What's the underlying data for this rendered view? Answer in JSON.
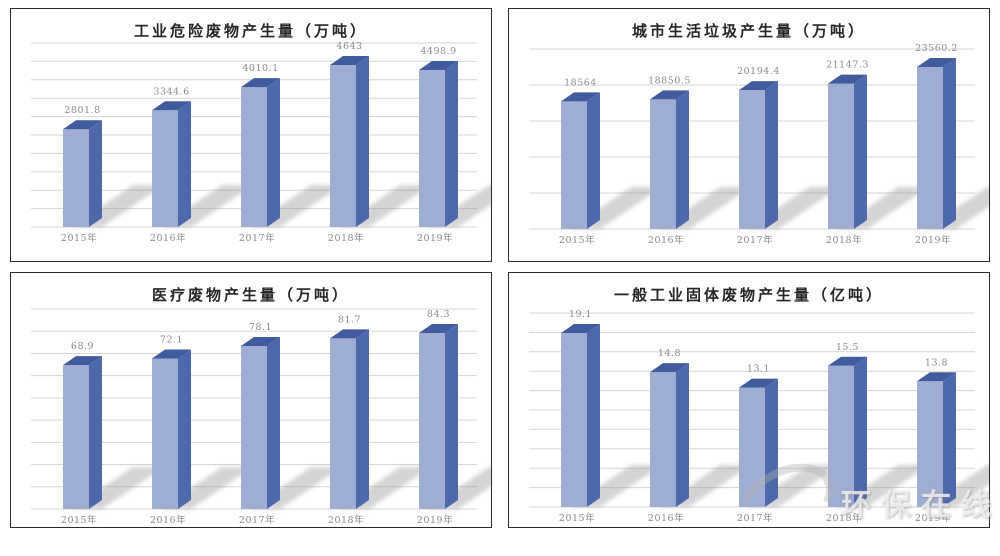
{
  "page": {
    "watermark_text": "环保在线"
  },
  "colors": {
    "bar_front": "#9fadd3",
    "bar_side": "#4e69ab",
    "bar_top": "#415c9e",
    "shadow": "#909090",
    "gridline": "#d6d6d6",
    "label": "#8a8a8a",
    "title": "#262626",
    "panel_border": "#2a2a2a"
  },
  "chart_data": [
    {
      "type": "bar",
      "title": "工业危险废物产生量（万吨）",
      "unit": "万吨",
      "categories": [
        "2015年",
        "2016年",
        "2017年",
        "2018年",
        "2019年"
      ],
      "values": [
        2801.8,
        3344.6,
        4010.1,
        4643,
        4498.9
      ],
      "value_labels": [
        "2801.8",
        "3344.6",
        "4010.1",
        "4643",
        "4498.9"
      ],
      "ylim": [
        0,
        4643
      ],
      "grid": true,
      "gridlines": 11,
      "legend": "none"
    },
    {
      "type": "bar",
      "title": "城市生活垃圾产生量（万吨）",
      "unit": "万吨",
      "categories": [
        "2015年",
        "2016年",
        "2017年",
        "2018年",
        "2019年"
      ],
      "values": [
        18564,
        18850.5,
        20194.4,
        21147.3,
        23560.2
      ],
      "value_labels": [
        "18564",
        "18850.5",
        "20194.4",
        "21147.3",
        "23560.2"
      ],
      "ylim": [
        0,
        23560.2
      ],
      "grid": true,
      "gridlines": 6,
      "legend": "none"
    },
    {
      "type": "bar",
      "title": "医疗废物产生量（万吨）",
      "unit": "万吨",
      "categories": [
        "2015年",
        "2016年",
        "2017年",
        "2018年",
        "2019年"
      ],
      "values": [
        68.9,
        72.1,
        78.1,
        81.7,
        84.3
      ],
      "value_labels": [
        "68.9",
        "72.1",
        "78.1",
        "81.7",
        "84.3"
      ],
      "ylim": [
        0,
        84.3
      ],
      "grid": true,
      "gridlines": 10,
      "legend": "none"
    },
    {
      "type": "bar",
      "title": "一般工业固体废物产生量（亿吨）",
      "unit": "亿吨",
      "categories": [
        "2015年",
        "2016年",
        "2017年",
        "2018年",
        "2019年"
      ],
      "values": [
        19.1,
        14.8,
        13.1,
        15.5,
        13.8
      ],
      "value_labels": [
        "19.1",
        "14.8",
        "13.1",
        "15.5",
        "13.8"
      ],
      "ylim": [
        0,
        19.1
      ],
      "grid": true,
      "gridlines": 11,
      "legend": "none"
    }
  ]
}
